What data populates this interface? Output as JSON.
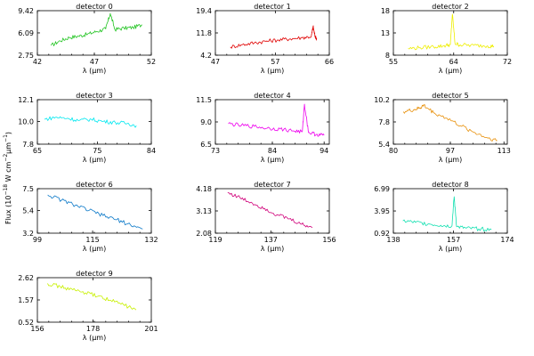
{
  "chart_data": {
    "type": "line",
    "ylabel": "Flux (10^-18 W cm^-2 μm^-1)",
    "panels": [
      {
        "title": "detector 0",
        "color": "#22c422",
        "xlim": [
          42,
          52
        ],
        "xticks": [
          {
            "v": 42,
            "t": "42"
          },
          {
            "v": 47,
            "t": "47"
          },
          {
            "v": 52,
            "t": "52"
          }
        ],
        "ylim": [
          2.75,
          9.42
        ],
        "yticks": [
          {
            "v": 2.75,
            "t": "2.75"
          },
          {
            "v": 6.09,
            "t": "6.09"
          },
          {
            "v": 9.42,
            "t": "9.42"
          }
        ],
        "xlabel": "λ (μm)",
        "x": [
          43.2,
          44.0,
          44.8,
          45.6,
          46.4,
          47.2,
          48.0,
          48.4,
          48.8,
          49.6,
          50.4,
          51.2
        ],
        "y": [
          4.2,
          4.9,
          5.4,
          5.6,
          5.9,
          6.3,
          6.7,
          9.0,
          6.6,
          6.8,
          6.9,
          7.3
        ]
      },
      {
        "title": "detector 1",
        "color": "#e00000",
        "xlim": [
          47,
          66
        ],
        "xticks": [
          {
            "v": 47,
            "t": "47"
          },
          {
            "v": 57,
            "t": "57"
          },
          {
            "v": 66,
            "t": "66"
          }
        ],
        "ylim": [
          4.2,
          19.4
        ],
        "yticks": [
          {
            "v": 4.2,
            "t": "4.2"
          },
          {
            "v": 11.8,
            "t": "11.8"
          },
          {
            "v": 19.4,
            "t": "19.4"
          }
        ],
        "xlabel": "λ (μm)",
        "x": [
          49.5,
          51.5,
          53.5,
          55.5,
          57.5,
          59.5,
          61.5,
          63.0,
          63.3,
          63.6,
          63.9
        ],
        "y": [
          7.0,
          7.8,
          8.4,
          9.0,
          9.4,
          9.8,
          10.2,
          10.6,
          14.0,
          10.8,
          9.8
        ]
      },
      {
        "title": "detector 2",
        "color": "#eeee00",
        "xlim": [
          55,
          72
        ],
        "xticks": [
          {
            "v": 55,
            "t": "55"
          },
          {
            "v": 64,
            "t": "64"
          },
          {
            "v": 72,
            "t": "72"
          }
        ],
        "ylim": [
          8,
          18
        ],
        "yticks": [
          {
            "v": 8,
            "t": "8"
          },
          {
            "v": 13,
            "t": "13"
          },
          {
            "v": 18,
            "t": "18"
          }
        ],
        "xlabel": "λ (μm)",
        "x": [
          57.2,
          59.0,
          61.0,
          62.5,
          63.5,
          63.8,
          64.2,
          65.0,
          67.0,
          69.0,
          70.0
        ],
        "y": [
          9.5,
          9.7,
          9.9,
          10.1,
          10.4,
          17.2,
          10.6,
          10.3,
          10.2,
          10.1,
          10.0
        ]
      },
      {
        "title": "detector 3",
        "color": "#00e8f0",
        "xlim": [
          65,
          84
        ],
        "xticks": [
          {
            "v": 65,
            "t": "65"
          },
          {
            "v": 75,
            "t": "75"
          },
          {
            "v": 84,
            "t": "84"
          }
        ],
        "ylim": [
          7.8,
          12.1
        ],
        "yticks": [
          {
            "v": 7.8,
            "t": "7.8"
          },
          {
            "v": 10.0,
            "t": "10.0"
          },
          {
            "v": 12.1,
            "t": "12.1"
          }
        ],
        "xlabel": "λ (μm)",
        "x": [
          66.2,
          68.0,
          70.0,
          72.0,
          74.0,
          76.0,
          78.0,
          80.0,
          81.5
        ],
        "y": [
          10.2,
          10.4,
          10.3,
          10.1,
          10.2,
          10.0,
          9.9,
          9.8,
          9.6
        ]
      },
      {
        "title": "detector 4",
        "color": "#ee00ee",
        "xlim": [
          73,
          95
        ],
        "xticks": [
          {
            "v": 73,
            "t": "73"
          },
          {
            "v": 84,
            "t": "84"
          },
          {
            "v": 94,
            "t": "94"
          }
        ],
        "ylim": [
          6.5,
          11.5
        ],
        "yticks": [
          {
            "v": 6.5,
            "t": "6.5"
          },
          {
            "v": 9.0,
            "t": "9.0"
          },
          {
            "v": 11.5,
            "t": "11.5"
          }
        ],
        "xlabel": "λ (μm)",
        "x": [
          75.5,
          78.0,
          80.5,
          83.0,
          85.5,
          88.0,
          89.8,
          90.2,
          91.0,
          92.5,
          94.0
        ],
        "y": [
          8.8,
          8.6,
          8.5,
          8.3,
          8.2,
          8.0,
          7.9,
          11.0,
          7.8,
          7.6,
          7.5
        ]
      },
      {
        "title": "detector 5",
        "color": "#e8900a",
        "xlim": [
          80,
          114
        ],
        "xticks": [
          {
            "v": 80,
            "t": "80"
          },
          {
            "v": 97,
            "t": "97"
          },
          {
            "v": 113,
            "t": "113"
          }
        ],
        "ylim": [
          5.4,
          10.2
        ],
        "yticks": [
          {
            "v": 5.4,
            "t": "5.4"
          },
          {
            "v": 7.8,
            "t": "7.8"
          },
          {
            "v": 10.2,
            "t": "10.2"
          }
        ],
        "xlabel": "λ (μm)",
        "x": [
          83.0,
          86.0,
          88.0,
          89.0,
          92.0,
          96.0,
          100.0,
          104.0,
          108.0,
          111.0
        ],
        "y": [
          8.9,
          9.1,
          9.3,
          9.6,
          8.8,
          8.2,
          7.4,
          6.7,
          6.1,
          5.8
        ]
      },
      {
        "title": "detector 6",
        "color": "#0a78c8",
        "xlim": [
          99,
          132
        ],
        "xticks": [
          {
            "v": 99,
            "t": "99"
          },
          {
            "v": 115,
            "t": "115"
          },
          {
            "v": 132,
            "t": "132"
          }
        ],
        "ylim": [
          3.2,
          7.5
        ],
        "yticks": [
          {
            "v": 3.2,
            "t": "3.2"
          },
          {
            "v": 5.4,
            "t": "5.4"
          },
          {
            "v": 7.5,
            "t": "7.5"
          }
        ],
        "xlabel": "λ (μm)",
        "x": [
          102.0,
          106.0,
          110.0,
          114.0,
          118.0,
          122.0,
          126.0,
          129.5
        ],
        "y": [
          6.9,
          6.4,
          5.9,
          5.4,
          4.9,
          4.5,
          4.0,
          3.6
        ]
      },
      {
        "title": "detector 7",
        "color": "#d0007a",
        "xlim": [
          119,
          156
        ],
        "xticks": [
          {
            "v": 119,
            "t": "119"
          },
          {
            "v": 137,
            "t": "137"
          },
          {
            "v": 156,
            "t": "156"
          }
        ],
        "ylim": [
          2.08,
          4.18
        ],
        "yticks": [
          {
            "v": 2.08,
            "t": "2.08"
          },
          {
            "v": 3.13,
            "t": "3.13"
          },
          {
            "v": 4.18,
            "t": "4.18"
          }
        ],
        "xlabel": "λ (μm)",
        "x": [
          123.0,
          127.0,
          131.0,
          135.0,
          139.0,
          143.0,
          147.0,
          150.5
        ],
        "y": [
          4.0,
          3.75,
          3.5,
          3.25,
          2.95,
          2.75,
          2.5,
          2.35
        ]
      },
      {
        "title": "detector 8",
        "color": "#10e0b0",
        "xlim": [
          138,
          174
        ],
        "xticks": [
          {
            "v": 138,
            "t": "138"
          },
          {
            "v": 157,
            "t": "157"
          },
          {
            "v": 174,
            "t": "174"
          }
        ],
        "ylim": [
          0.92,
          6.99
        ],
        "yticks": [
          {
            "v": 0.92,
            "t": "0.92"
          },
          {
            "v": 3.95,
            "t": "3.95"
          },
          {
            "v": 6.99,
            "t": "6.99"
          }
        ],
        "xlabel": "λ (μm)",
        "x": [
          141.0,
          145.0,
          149.0,
          153.0,
          156.5,
          157.2,
          158.0,
          161.0,
          165.0,
          169.0
        ],
        "y": [
          2.6,
          2.4,
          2.2,
          2.0,
          1.9,
          5.9,
          1.8,
          1.6,
          1.5,
          1.4
        ]
      },
      {
        "title": "detector 9",
        "color": "#c8f000",
        "xlim": [
          156,
          201
        ],
        "xticks": [
          {
            "v": 156,
            "t": "156"
          },
          {
            "v": 178,
            "t": "178"
          },
          {
            "v": 201,
            "t": "201"
          }
        ],
        "ylim": [
          0.52,
          2.62
        ],
        "yticks": [
          {
            "v": 0.52,
            "t": "0.52"
          },
          {
            "v": 1.57,
            "t": "1.57"
          },
          {
            "v": 2.62,
            "t": "2.62"
          }
        ],
        "xlabel": "λ (μm)",
        "x": [
          160.0,
          165.0,
          170.0,
          175.0,
          180.0,
          185.0,
          190.0,
          195.0
        ],
        "y": [
          2.35,
          2.2,
          2.05,
          1.9,
          1.75,
          1.55,
          1.35,
          1.1
        ]
      }
    ]
  }
}
